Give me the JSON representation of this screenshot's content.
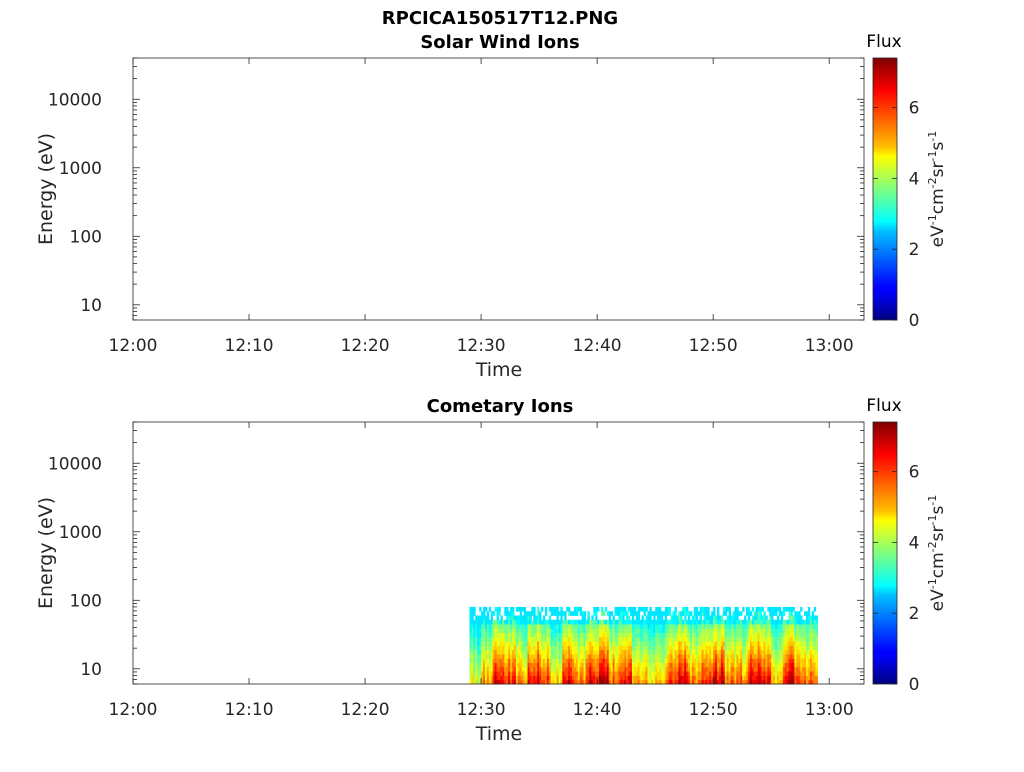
{
  "figure_title": "RPCICA150517T12.PNG",
  "chart_data": [
    {
      "type": "heatmap",
      "title": "Solar Wind Ions",
      "xlabel": "Time",
      "ylabel": "Energy (eV)",
      "x_ticks": [
        "12:00",
        "12:10",
        "12:20",
        "12:30",
        "12:40",
        "12:50",
        "13:00"
      ],
      "xlim": [
        "12:00",
        "13:03"
      ],
      "y_scale": "log",
      "y_ticks": [
        10,
        100,
        1000,
        10000
      ],
      "y_tick_labels": [
        "10",
        "100",
        "1000",
        "10000"
      ],
      "ylim": [
        6,
        40000
      ],
      "colorbar": {
        "label": "Flux",
        "units": "eV-1cm-2sr-1s-1",
        "ticks": [
          0,
          2,
          4,
          6
        ],
        "range": [
          0,
          7.4
        ],
        "colormap": "jet"
      },
      "data_present": false,
      "columns": []
    },
    {
      "type": "heatmap",
      "title": "Cometary Ions",
      "xlabel": "Time",
      "ylabel": "Energy (eV)",
      "x_ticks": [
        "12:00",
        "12:10",
        "12:20",
        "12:30",
        "12:40",
        "12:50",
        "13:00"
      ],
      "xlim": [
        "12:00",
        "13:03"
      ],
      "y_scale": "log",
      "y_ticks": [
        10,
        100,
        1000,
        10000
      ],
      "y_tick_labels": [
        "10",
        "100",
        "1000",
        "10000"
      ],
      "ylim": [
        6,
        40000
      ],
      "colorbar": {
        "label": "Flux",
        "units": "eV-1cm-2sr-1s-1",
        "ticks": [
          0,
          2,
          4,
          6
        ],
        "range": [
          0,
          7.4
        ],
        "colormap": "jet"
      },
      "data_present": true,
      "data_time_range": [
        "12:29",
        "12:58"
      ],
      "data_energy_range": [
        6,
        80
      ],
      "columns": [
        {
          "t": "12:29:00",
          "peak": 4.6
        },
        {
          "t": "12:30:00",
          "peak": 5.3
        },
        {
          "t": "12:31:00",
          "peak": 6.6
        },
        {
          "t": "12:32:00",
          "peak": 6.3
        },
        {
          "t": "12:33:00",
          "peak": 5.4
        },
        {
          "t": "12:34:00",
          "peak": 6.7
        },
        {
          "t": "12:35:00",
          "peak": 6.2
        },
        {
          "t": "12:36:00",
          "peak": 5.2
        },
        {
          "t": "12:37:00",
          "peak": 6.8
        },
        {
          "t": "12:38:00",
          "peak": 5.6
        },
        {
          "t": "12:39:00",
          "peak": 6.5
        },
        {
          "t": "12:40:00",
          "peak": 6.9
        },
        {
          "t": "12:41:00",
          "peak": 5.9
        },
        {
          "t": "12:42:00",
          "peak": 6.6
        },
        {
          "t": "12:43:00",
          "peak": 5.4
        },
        {
          "t": "12:44:00",
          "peak": 5.0
        },
        {
          "t": "12:45:00",
          "peak": 4.9
        },
        {
          "t": "12:46:00",
          "peak": 6.4
        },
        {
          "t": "12:47:00",
          "peak": 6.7
        },
        {
          "t": "12:48:00",
          "peak": 5.5
        },
        {
          "t": "12:49:00",
          "peak": 6.5
        },
        {
          "t": "12:50:00",
          "peak": 6.8
        },
        {
          "t": "12:51:00",
          "peak": 5.6
        },
        {
          "t": "12:52:00",
          "peak": 5.8
        },
        {
          "t": "12:53:00",
          "peak": 6.9
        },
        {
          "t": "12:54:00",
          "peak": 6.6
        },
        {
          "t": "12:55:00",
          "peak": 5.2
        },
        {
          "t": "12:56:00",
          "peak": 6.7
        },
        {
          "t": "12:57:00",
          "peak": 6.3
        },
        {
          "t": "12:58:00",
          "peak": 5.8
        }
      ]
    }
  ]
}
